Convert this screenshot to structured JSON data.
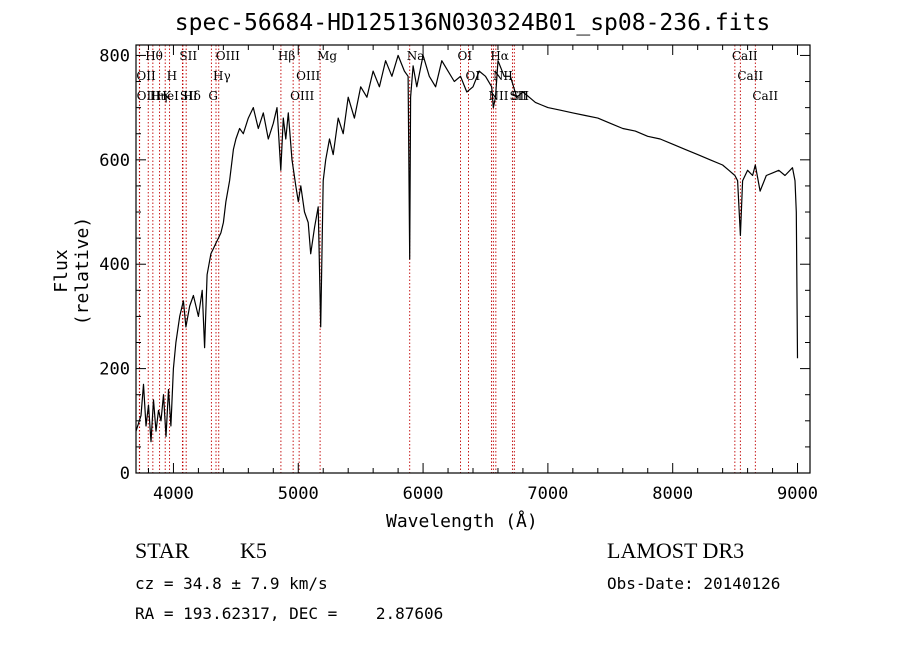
{
  "chart_data": {
    "type": "line",
    "title": "spec-56684-HD125136N030324B01_sp08-236.fits",
    "xlabel": "Wavelength (Å)",
    "ylabel": "Flux (relative)",
    "xlim": [
      3700,
      9100
    ],
    "ylim": [
      0,
      820
    ],
    "xticks": [
      4000,
      5000,
      6000,
      7000,
      8000,
      9000
    ],
    "yticks": [
      0,
      200,
      400,
      600,
      800
    ],
    "series": [
      {
        "name": "flux",
        "x": [
          3700,
          3740,
          3760,
          3780,
          3800,
          3820,
          3840,
          3860,
          3880,
          3900,
          3920,
          3940,
          3960,
          3980,
          4000,
          4020,
          4050,
          4080,
          4100,
          4130,
          4160,
          4200,
          4230,
          4250,
          4270,
          4300,
          4320,
          4340,
          4360,
          4380,
          4400,
          4420,
          4450,
          4480,
          4500,
          4530,
          4560,
          4600,
          4640,
          4680,
          4720,
          4760,
          4800,
          4830,
          4860,
          4880,
          4900,
          4920,
          4950,
          4980,
          5000,
          5020,
          5050,
          5080,
          5100,
          5130,
          5160,
          5180,
          5200,
          5220,
          5250,
          5280,
          5320,
          5360,
          5400,
          5450,
          5500,
          5550,
          5600,
          5650,
          5700,
          5750,
          5800,
          5850,
          5880,
          5893,
          5900,
          5920,
          5950,
          6000,
          6050,
          6100,
          6150,
          6200,
          6250,
          6300,
          6350,
          6400,
          6450,
          6500,
          6550,
          6563,
          6580,
          6600,
          6650,
          6700,
          6750,
          6800,
          6850,
          6900,
          6950,
          7000,
          7100,
          7200,
          7300,
          7400,
          7500,
          7600,
          7700,
          7800,
          7900,
          8000,
          8100,
          8200,
          8300,
          8400,
          8450,
          8498,
          8520,
          8542,
          8560,
          8600,
          8640,
          8662,
          8700,
          8750,
          8800,
          8850,
          8900,
          8960,
          8980,
          8990,
          9000
        ],
        "values": [
          80,
          110,
          170,
          90,
          130,
          60,
          140,
          80,
          120,
          100,
          150,
          70,
          160,
          90,
          200,
          250,
          300,
          330,
          280,
          320,
          340,
          300,
          350,
          240,
          380,
          420,
          430,
          440,
          450,
          460,
          480,
          520,
          560,
          620,
          640,
          660,
          650,
          680,
          700,
          660,
          690,
          640,
          670,
          700,
          580,
          680,
          640,
          690,
          600,
          550,
          520,
          550,
          500,
          480,
          420,
          470,
          510,
          280,
          560,
          600,
          640,
          610,
          680,
          650,
          720,
          680,
          740,
          720,
          770,
          740,
          790,
          760,
          800,
          770,
          760,
          410,
          720,
          780,
          740,
          800,
          760,
          740,
          790,
          770,
          750,
          760,
          730,
          740,
          770,
          760,
          740,
          700,
          720,
          790,
          760,
          760,
          720,
          730,
          720,
          710,
          705,
          700,
          695,
          690,
          685,
          680,
          670,
          660,
          655,
          645,
          640,
          630,
          620,
          610,
          600,
          590,
          580,
          570,
          560,
          455,
          560,
          580,
          570,
          590,
          540,
          570,
          575,
          580,
          570,
          585,
          560,
          500,
          220
        ]
      }
    ],
    "line_markers": [
      {
        "name": "Hθ",
        "x": 3798
      },
      {
        "name": "OII",
        "x": 3727
      },
      {
        "name": "OII",
        "x": 3729
      },
      {
        "name": "K",
        "x": 3934
      },
      {
        "name": "HeI",
        "x": 3889
      },
      {
        "name": "Hη",
        "x": 3835
      },
      {
        "name": "H",
        "x": 3969
      },
      {
        "name": "SII",
        "x": 4072
      },
      {
        "name": "Hδ",
        "x": 4102
      },
      {
        "name": "SII",
        "x": 4076
      },
      {
        "name": "OIII",
        "x": 4363
      },
      {
        "name": "Hγ",
        "x": 4341
      },
      {
        "name": "G",
        "x": 4304
      },
      {
        "name": "Hβ",
        "x": 4861
      },
      {
        "name": "OIII",
        "x": 5007
      },
      {
        "name": "OIII",
        "x": 4959
      },
      {
        "name": "Mg",
        "x": 5175
      },
      {
        "name": "Na",
        "x": 5893
      },
      {
        "name": "OI",
        "x": 6300
      },
      {
        "name": "OI",
        "x": 6364
      },
      {
        "name": "Hα",
        "x": 6563
      },
      {
        "name": "NII",
        "x": 6583
      },
      {
        "name": "NII",
        "x": 6548
      },
      {
        "name": "SII",
        "x": 6716
      },
      {
        "name": "SII",
        "x": 6731
      },
      {
        "name": "CaII",
        "x": 8498
      },
      {
        "name": "CaII",
        "x": 8542
      },
      {
        "name": "CaII",
        "x": 8662
      }
    ]
  },
  "info": {
    "object_class": "STAR",
    "subclass": "K5",
    "survey": "LAMOST DR3",
    "redshift": "cz = 34.8 ± 7.9 km/s",
    "obs_date": "Obs-Date: 20140126",
    "coords": "RA = 193.62317, DEC =    2.87606"
  },
  "colors": {
    "line": "#000000",
    "marker": "#c00000",
    "axis": "#000000",
    "background": "#ffffff"
  }
}
